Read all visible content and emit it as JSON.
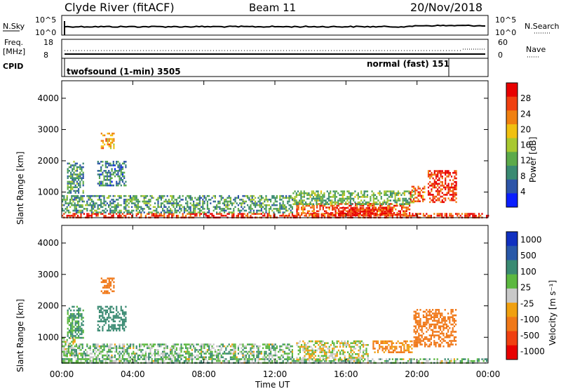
{
  "header": {
    "station": "Clyde River (fitACF)",
    "beam": "Beam 11",
    "date": "20/Nov/2018"
  },
  "nsky_panel": {
    "left_label": "N.Sky",
    "right_label": "N.Search",
    "ticks_left": [
      "10^5",
      "10^0"
    ],
    "ticks_right": [
      "10^5",
      "10^0"
    ]
  },
  "freq_panel": {
    "label_top": "Freq.",
    "label_unit": "[MHz]",
    "ticks_left": [
      "18",
      "8"
    ],
    "ticks_right": [
      "60",
      "0"
    ],
    "right_label": "Nave"
  },
  "cpid_panel": {
    "label": "CPID",
    "mode1": "twofsound (1-min) 3505",
    "mode2": "normal (fast) 151"
  },
  "colors": {
    "power_scale": [
      "#0a1eff",
      "#2d55a8",
      "#3a8a72",
      "#5caa4a",
      "#a8c830",
      "#f0c010",
      "#f08010",
      "#f04010",
      "#e80000"
    ],
    "velocity_scale": [
      "#1030c0",
      "#2858a8",
      "#3a8a72",
      "#5cb840",
      "#c8c8c8",
      "#f0a010",
      "#f07818",
      "#f04010",
      "#e80000"
    ]
  },
  "chart_data": [
    {
      "type": "heatmap",
      "name": "power",
      "ylabel": "Slant Range [km]",
      "xlabel": "Time UT",
      "yticks": [
        "1000",
        "2000",
        "3000",
        "4000"
      ],
      "xticks": [
        "00:00",
        "04:00",
        "08:00",
        "12:00",
        "16:00",
        "20:00",
        "00:00"
      ],
      "xlim_hours": [
        0,
        24
      ],
      "ylim_km": [
        180,
        4560
      ],
      "colorbar": {
        "label": "Power [dB]",
        "ticks": [
          "4",
          "8",
          "12",
          "16",
          "20",
          "24",
          "28"
        ],
        "range": [
          0,
          30
        ]
      },
      "regions": [
        {
          "t0": 0,
          "t1": 24,
          "r0": 180,
          "r1": 330,
          "value": 26
        },
        {
          "t0": 13.2,
          "t1": 19.6,
          "r0": 250,
          "r1": 650,
          "value": 24
        },
        {
          "t0": 15.2,
          "t1": 18.5,
          "r0": 280,
          "r1": 520,
          "value": 28
        },
        {
          "t0": 13,
          "t1": 19.8,
          "r0": 600,
          "r1": 1050,
          "value": 12
        },
        {
          "t0": 0.3,
          "t1": 1.2,
          "r0": 1000,
          "r1": 2000,
          "value": 10
        },
        {
          "t0": 2.0,
          "t1": 3.6,
          "r0": 1200,
          "r1": 2000,
          "value": 8
        },
        {
          "t0": 2.2,
          "t1": 2.9,
          "r0": 2400,
          "r1": 2900,
          "value": 20
        },
        {
          "t0": 20.6,
          "t1": 22.2,
          "r0": 700,
          "r1": 1700,
          "value": 26
        },
        {
          "t0": 19.6,
          "t1": 20.4,
          "r0": 700,
          "r1": 1200,
          "value": 24
        },
        {
          "t0": 0,
          "t1": 13,
          "r0": 330,
          "r1": 900,
          "value": 10
        }
      ]
    },
    {
      "type": "heatmap",
      "name": "velocity",
      "ylabel": "Slant Range [km]",
      "xlabel": "Time UT",
      "yticks": [
        "1000",
        "2000",
        "3000",
        "4000"
      ],
      "xticks": [
        "00:00",
        "04:00",
        "08:00",
        "12:00",
        "16:00",
        "20:00",
        "00:00"
      ],
      "xlim_hours": [
        0,
        24
      ],
      "ylim_km": [
        180,
        4560
      ],
      "colorbar": {
        "label": "Velocity [m s⁻¹]",
        "ticks": [
          "1000",
          "500",
          "100",
          "25",
          "-25",
          "-100",
          "-500",
          "-1000"
        ],
        "range": [
          -1000,
          1000
        ]
      },
      "regions": [
        {
          "t0": 0,
          "t1": 24,
          "r0": 180,
          "r1": 330,
          "value": 60
        },
        {
          "t0": 13.2,
          "t1": 17.2,
          "r0": 300,
          "r1": 900,
          "value": 0
        },
        {
          "t0": 0,
          "t1": 0.7,
          "r0": 400,
          "r1": 1000,
          "value": 0
        },
        {
          "t0": 0.3,
          "t1": 1.2,
          "r0": 1000,
          "r1": 2000,
          "value": 120
        },
        {
          "t0": 2.0,
          "t1": 3.6,
          "r0": 1200,
          "r1": 2000,
          "value": 200
        },
        {
          "t0": 2.2,
          "t1": 2.9,
          "r0": 2400,
          "r1": 2900,
          "value": -200
        },
        {
          "t0": 19.8,
          "t1": 22.2,
          "r0": 700,
          "r1": 1900,
          "value": -250
        },
        {
          "t0": 17.5,
          "t1": 19.7,
          "r0": 500,
          "r1": 900,
          "value": -120
        },
        {
          "t0": 0,
          "t1": 13,
          "r0": 330,
          "r1": 800,
          "value": 60
        }
      ]
    }
  ]
}
